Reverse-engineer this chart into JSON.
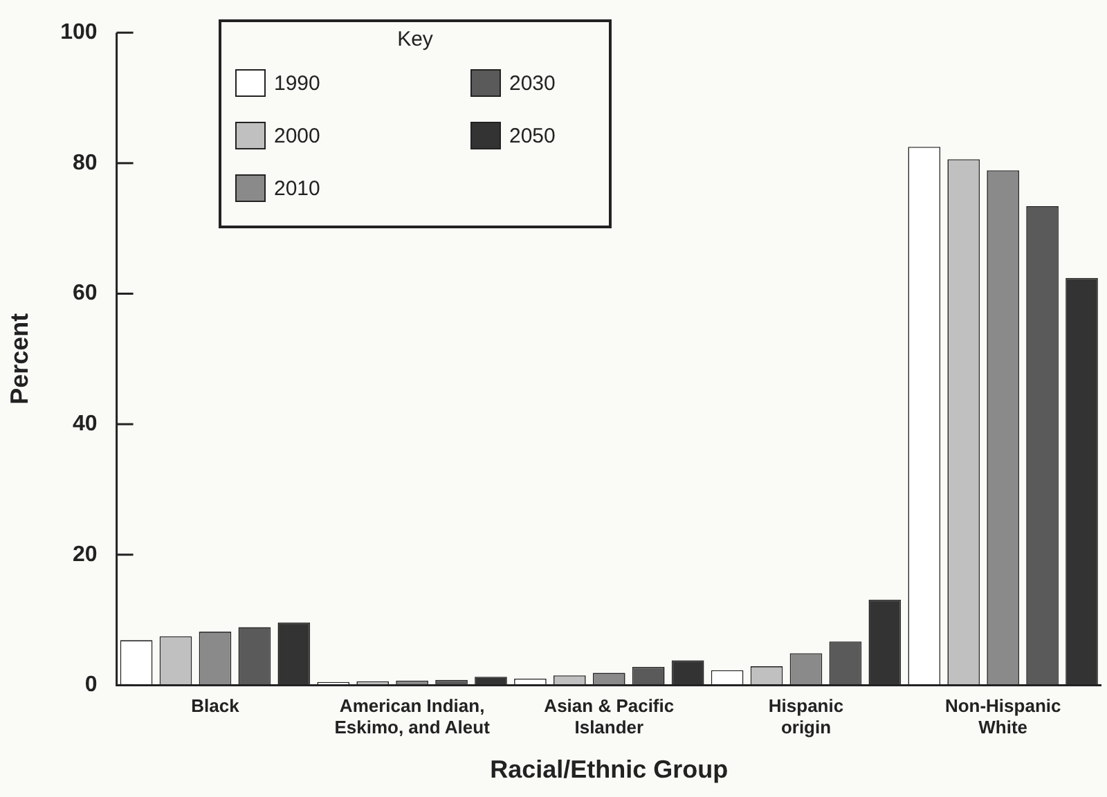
{
  "chart_data": {
    "type": "bar",
    "xlabel": "Racial/Ethnic Group",
    "ylabel": "Percent",
    "legend_title": "Key",
    "categories": [
      "Black",
      "American Indian,\nEskimo, and Aleut",
      "Asian & Pacific\nIslander",
      "Hispanic\norigin",
      "Non-Hispanic\nWhite"
    ],
    "series": [
      {
        "name": "1990",
        "color": "#ffffff",
        "values": [
          6.9,
          0.5,
          1.0,
          2.3,
          82.5
        ]
      },
      {
        "name": "2000",
        "color": "#c0c0c0",
        "values": [
          7.5,
          0.6,
          1.5,
          2.9,
          80.6
        ]
      },
      {
        "name": "2010",
        "color": "#8a8a8a",
        "values": [
          8.2,
          0.7,
          1.9,
          4.9,
          78.9
        ]
      },
      {
        "name": "2030",
        "color": "#5a5a5a",
        "values": [
          8.9,
          0.8,
          2.8,
          6.7,
          73.4
        ]
      },
      {
        "name": "2050",
        "color": "#333333",
        "values": [
          9.6,
          1.3,
          3.8,
          13.1,
          62.4
        ]
      }
    ],
    "ylim": [
      0,
      100
    ],
    "yticks": [
      0,
      20,
      40,
      60,
      80,
      100
    ],
    "grid": false,
    "legend": "top left"
  }
}
